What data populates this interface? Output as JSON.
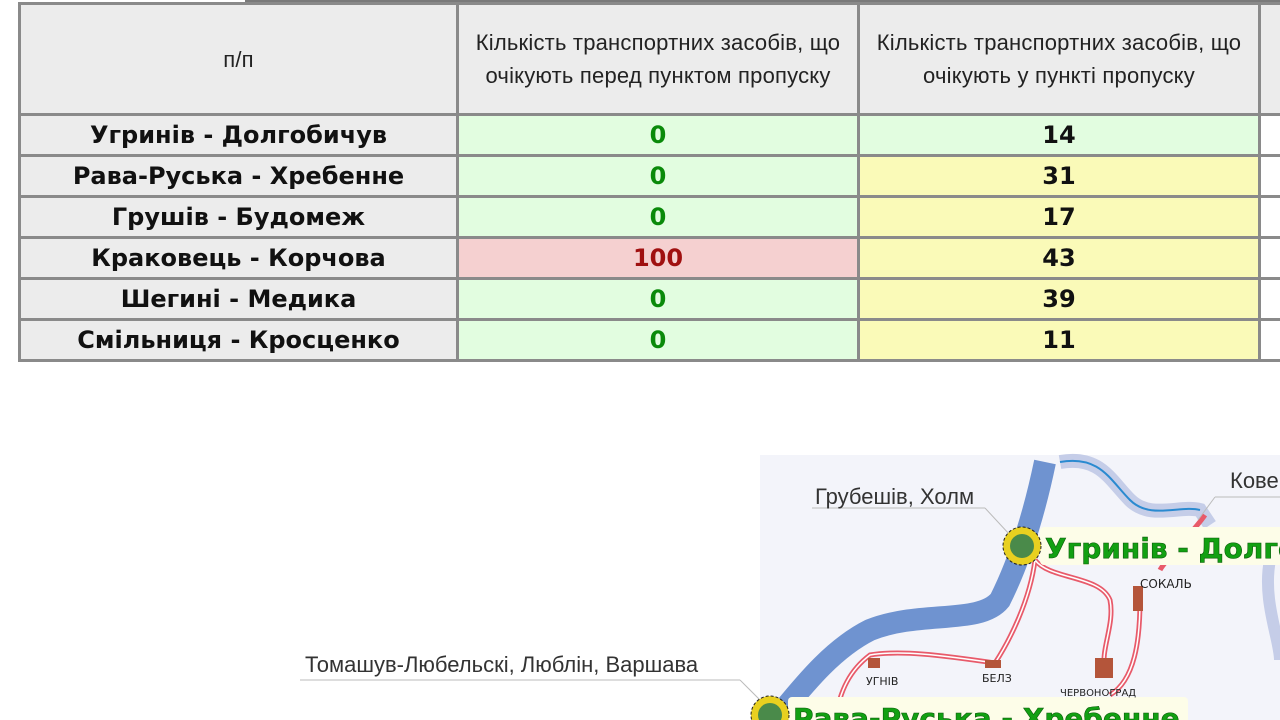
{
  "table": {
    "headers": [
      "п/п",
      "Кількість транспортних засобів, що очікують перед пунктом пропуску",
      "Кількість транспортних засобів, що очікують у пункті пропуску",
      ""
    ],
    "rows": [
      {
        "name": "Угринів - Долгобичув",
        "before": "0",
        "before_status": "green",
        "inside": "14",
        "inside_status": "green"
      },
      {
        "name": "Рава-Руська - Хребенне",
        "before": "0",
        "before_status": "green",
        "inside": "31",
        "inside_status": "yellow"
      },
      {
        "name": "Грушів - Будомеж",
        "before": "0",
        "before_status": "green",
        "inside": "17",
        "inside_status": "yellow"
      },
      {
        "name": "Краковець - Корчова",
        "before": "100",
        "before_status": "red",
        "inside": "43",
        "inside_status": "yellow"
      },
      {
        "name": "Шегині - Медика",
        "before": "0",
        "before_status": "green",
        "inside": "39",
        "inside_status": "yellow"
      },
      {
        "name": "Смільниця - Кросценко",
        "before": "0",
        "before_status": "green",
        "inside": "11",
        "inside_status": "yellow"
      }
    ]
  },
  "colors": {
    "green": "#e2fde0",
    "yellow": "#fafab8",
    "red": "#f5d0d0",
    "border_river": "#6f93d0"
  },
  "map": {
    "labels": {
      "hrubieszow": "Грубешів, Холм",
      "kovel": "Кове",
      "tomaszow": "Томашув-Любельскі, Люблін, Варшава",
      "uhryniv": "Угринів - Долгобичув",
      "rava": "Рава-Руська - Хребенне",
      "sokal": "СОКАЛЬ",
      "uhniv": "УГНІВ",
      "belz": "БЕЛЗ",
      "chervonohrad": "ЧЕРВОНОГРАД"
    },
    "icons": [
      "customs-emblem-icon"
    ]
  }
}
